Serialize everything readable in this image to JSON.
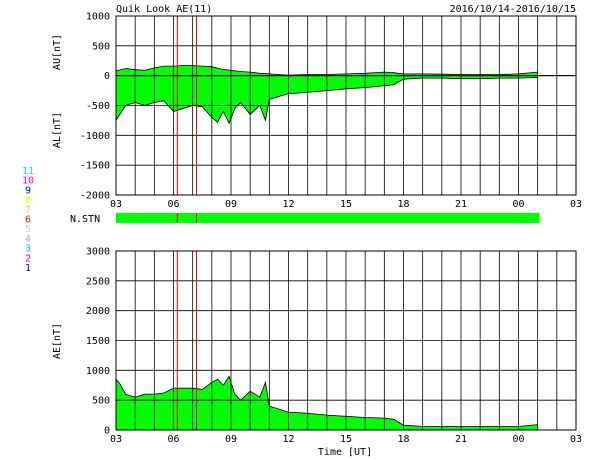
{
  "header": {
    "title": "Quik Look AE(11)",
    "date_range": "2016/10/14-2016/10/15"
  },
  "colors": {
    "fill": "#00ff00",
    "line": "#000000",
    "grid": "#000000",
    "marker": "#ff0000",
    "stn_bar": "#00ff00"
  },
  "station_legend": [
    {
      "label": "11",
      "color": "#00e5e5"
    },
    {
      "label": "10",
      "color": "#ff00ff"
    },
    {
      "label": "9",
      "color": "#0000ff"
    },
    {
      "label": "8",
      "color": "#ffff00"
    },
    {
      "label": "7",
      "color": "#aaff00"
    },
    {
      "label": "6",
      "color": "#ff0000"
    },
    {
      "label": "5",
      "color": "#d0d0d0"
    },
    {
      "label": "4",
      "color": "#b0b0b0"
    },
    {
      "label": "3",
      "color": "#00cccc"
    },
    {
      "label": "2",
      "color": "#cc00cc"
    },
    {
      "label": "1",
      "color": "#0000cc"
    }
  ],
  "stn_label": "N.STN",
  "chart_data": [
    {
      "type": "area",
      "ylabel_top": "AU[nT]",
      "ylabel_bottom": "AL[nT]",
      "ylim": [
        -2000,
        1000
      ],
      "yticks": [
        "1000",
        "500",
        "0",
        "-500",
        "-1000",
        "-1500",
        "-2000"
      ],
      "xticks": [
        "03",
        "06",
        "09",
        "12",
        "15",
        "18",
        "21",
        "00",
        "03"
      ],
      "grid": true,
      "markers_ut": [
        6.2,
        7.2
      ],
      "au": {
        "x": [
          3,
          3.5,
          4,
          4.5,
          5,
          5.5,
          6,
          6.5,
          7,
          7.5,
          8,
          8.5,
          9,
          9.5,
          10,
          10.5,
          11,
          11.5,
          12,
          13,
          14,
          15,
          16,
          17,
          17.5,
          18,
          19,
          20,
          21,
          22,
          23,
          24,
          25
        ],
        "values": [
          80,
          120,
          100,
          90,
          130,
          160,
          160,
          170,
          170,
          160,
          150,
          110,
          90,
          70,
          60,
          40,
          30,
          20,
          10,
          20,
          20,
          30,
          40,
          60,
          50,
          30,
          30,
          25,
          20,
          20,
          20,
          30,
          60
        ]
      },
      "al": {
        "x": [
          3,
          3.2,
          3.5,
          4,
          4.5,
          5,
          5.5,
          6,
          6.5,
          7,
          7.5,
          8,
          8.3,
          8.6,
          8.9,
          9.2,
          9.5,
          10,
          10.5,
          10.8,
          11,
          11.5,
          12,
          13,
          14,
          15,
          16,
          17,
          17.5,
          18,
          19,
          20,
          21,
          22,
          23,
          24,
          25
        ],
        "values": [
          -750,
          -650,
          -500,
          -450,
          -500,
          -450,
          -420,
          -600,
          -550,
          -500,
          -520,
          -700,
          -780,
          -600,
          -800,
          -550,
          -450,
          -650,
          -500,
          -750,
          -400,
          -350,
          -300,
          -280,
          -250,
          -220,
          -200,
          -170,
          -150,
          -60,
          -40,
          -40,
          -50,
          -50,
          -40,
          -40,
          -30
        ]
      }
    },
    {
      "type": "area",
      "ylabel": "AE[nT]",
      "xlabel": "Time [UT]",
      "ylim": [
        0,
        3000
      ],
      "yticks": [
        "3000",
        "2500",
        "2000",
        "1500",
        "1000",
        "500",
        "0"
      ],
      "xticks": [
        "03",
        "06",
        "09",
        "12",
        "15",
        "18",
        "21",
        "00",
        "03"
      ],
      "grid": true,
      "markers_ut": [
        6.2,
        7.2
      ],
      "ae": {
        "x": [
          3,
          3.2,
          3.5,
          4,
          4.5,
          5,
          5.5,
          6,
          6.5,
          7,
          7.5,
          8,
          8.3,
          8.6,
          8.9,
          9.2,
          9.5,
          10,
          10.5,
          10.8,
          11,
          11.5,
          12,
          13,
          14,
          15,
          16,
          17,
          17.5,
          18,
          19,
          20,
          21,
          22,
          23,
          24,
          25
        ],
        "values": [
          850,
          780,
          600,
          550,
          600,
          600,
          620,
          700,
          700,
          700,
          680,
          800,
          850,
          750,
          900,
          600,
          500,
          650,
          550,
          800,
          400,
          350,
          300,
          280,
          250,
          230,
          210,
          200,
          180,
          80,
          60,
          60,
          60,
          60,
          60,
          60,
          90
        ]
      }
    }
  ]
}
